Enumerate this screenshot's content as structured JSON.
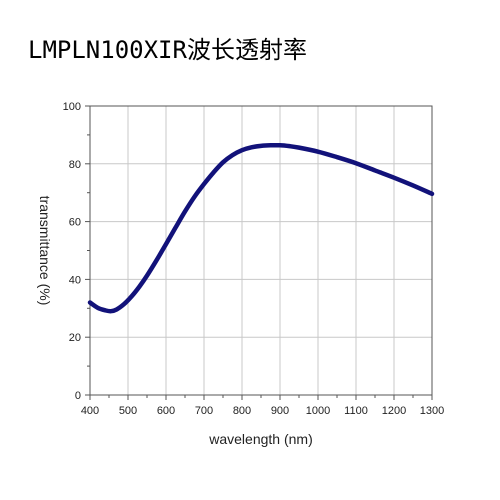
{
  "page": {
    "title": "LMPLN100XIR波长透射率"
  },
  "chart_data": {
    "type": "line",
    "title": "LMPLN100XIR波长透射率",
    "xlabel": "wavelength (nm)",
    "ylabel": "transmittance (%)",
    "xlim": [
      400,
      1300
    ],
    "ylim": [
      0,
      100
    ],
    "xticks": [
      400,
      500,
      600,
      700,
      800,
      900,
      1000,
      1100,
      1200,
      1300
    ],
    "yticks": [
      0,
      20,
      40,
      60,
      80,
      100
    ],
    "grid": true,
    "legend": "none",
    "series": [
      {
        "color": "#12127a",
        "x": [
          400,
          420,
          440,
          455,
          470,
          490,
          510,
          530,
          550,
          575,
          600,
          625,
          650,
          675,
          700,
          725,
          750,
          775,
          800,
          825,
          850,
          875,
          900,
          925,
          950,
          1000,
          1050,
          1100,
          1150,
          1200,
          1250,
          1300
        ],
        "y": [
          32,
          30.2,
          29.3,
          29.0,
          29.6,
          31.5,
          34.2,
          37.5,
          41.3,
          46.6,
          52.2,
          57.9,
          63.5,
          68.6,
          73.0,
          77.0,
          80.5,
          83.0,
          84.7,
          85.7,
          86.2,
          86.4,
          86.4,
          86.1,
          85.6,
          84.2,
          82.3,
          80.2,
          77.7,
          75.2,
          72.5,
          69.6
        ]
      }
    ]
  }
}
